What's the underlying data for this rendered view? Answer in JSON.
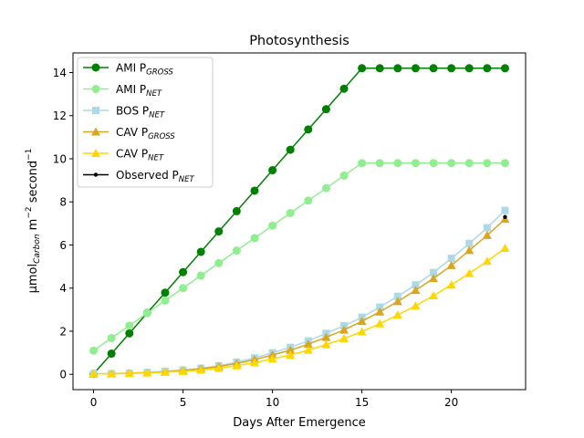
{
  "chart_data": {
    "type": "line",
    "title": "Photosynthesis",
    "xlabel": "Days After Emergence",
    "ylabel": {
      "base": "μmol",
      "sub": "Carbon",
      "mid": " m",
      "sup1": "−2",
      "tail": " second",
      "sup2": "−1"
    },
    "xlim": [
      -1.15,
      24.15
    ],
    "ylim": [
      -0.71,
      14.91
    ],
    "xticks": [
      0,
      5,
      10,
      15,
      20
    ],
    "yticks": [
      0,
      2,
      4,
      6,
      8,
      10,
      12,
      14
    ],
    "grid": false,
    "legend_position": "top-left",
    "x": [
      0,
      1,
      2,
      3,
      4,
      5,
      6,
      7,
      8,
      9,
      10,
      11,
      12,
      13,
      14,
      15,
      16,
      17,
      18,
      19,
      20,
      21,
      22,
      23
    ],
    "series": [
      {
        "name": "AMI P",
        "sub": "GROSS",
        "color": "#008000",
        "marker": "circle",
        "values": [
          0.02,
          0.96,
          1.9,
          2.85,
          3.79,
          4.74,
          5.68,
          6.63,
          7.57,
          8.52,
          9.47,
          10.42,
          11.36,
          12.3,
          13.25,
          14.2,
          14.2,
          14.2,
          14.2,
          14.2,
          14.2,
          14.2,
          14.2,
          14.2
        ]
      },
      {
        "name": "AMI P",
        "sub": "NET",
        "color": "#90ee90",
        "marker": "circle",
        "values": [
          1.1,
          1.68,
          2.26,
          2.84,
          3.42,
          4.0,
          4.58,
          5.16,
          5.74,
          6.32,
          6.9,
          7.48,
          8.06,
          8.64,
          9.22,
          9.8,
          9.8,
          9.8,
          9.8,
          9.8,
          9.8,
          9.8,
          9.8,
          9.8
        ]
      },
      {
        "name": "BOS P",
        "sub": "NET",
        "color": "#add8e6",
        "marker": "square",
        "values": [
          0.02,
          0.03,
          0.05,
          0.09,
          0.14,
          0.2,
          0.28,
          0.4,
          0.56,
          0.76,
          1.0,
          1.25,
          1.55,
          1.9,
          2.25,
          2.65,
          3.12,
          3.62,
          4.15,
          4.72,
          5.38,
          6.07,
          6.8,
          7.6
        ]
      },
      {
        "name": "CAV P",
        "sub": "GROSS",
        "color": "#daa520",
        "marker": "triangle",
        "values": [
          0.02,
          0.03,
          0.05,
          0.08,
          0.12,
          0.18,
          0.26,
          0.36,
          0.5,
          0.68,
          0.9,
          1.12,
          1.4,
          1.72,
          2.06,
          2.46,
          2.9,
          3.38,
          3.9,
          4.45,
          5.05,
          5.75,
          6.45,
          7.2
        ]
      },
      {
        "name": "CAV P",
        "sub": "NET",
        "color": "#ffd700",
        "marker": "triangle",
        "values": [
          0.02,
          0.02,
          0.04,
          0.07,
          0.1,
          0.14,
          0.2,
          0.28,
          0.4,
          0.54,
          0.72,
          0.9,
          1.12,
          1.38,
          1.66,
          1.98,
          2.35,
          2.75,
          3.18,
          3.65,
          4.15,
          4.68,
          5.25,
          5.85
        ]
      },
      {
        "name": "Observed P",
        "sub": "NET",
        "color": "#000000",
        "marker": "dot",
        "values": [
          null,
          null,
          null,
          null,
          null,
          null,
          null,
          null,
          null,
          null,
          null,
          null,
          null,
          null,
          null,
          null,
          null,
          null,
          null,
          null,
          null,
          null,
          null,
          7.3
        ]
      }
    ]
  }
}
